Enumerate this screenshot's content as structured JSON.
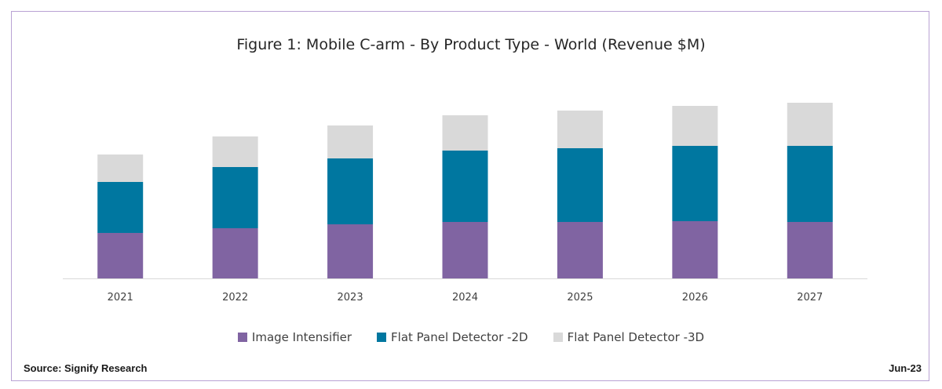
{
  "chart_data": {
    "type": "bar",
    "stacked": true,
    "title": "Figure 1: Mobile C-arm - By Product Type - World (Revenue $M)",
    "xlabel": "",
    "ylabel": "",
    "categories": [
      "2021",
      "2022",
      "2023",
      "2024",
      "2025",
      "2026",
      "2027"
    ],
    "series": [
      {
        "name": "Image Intensifier",
        "color": "#8064a2",
        "values": [
          58,
          64,
          69,
          72,
          72,
          73,
          72
        ]
      },
      {
        "name": "Flat Panel Detector -2D",
        "color": "#0077a0",
        "values": [
          65,
          78,
          84,
          91,
          94,
          96,
          97
        ]
      },
      {
        "name": "Flat Panel Detector -3D",
        "color": "#d9d9d9",
        "values": [
          35,
          39,
          42,
          45,
          48,
          51,
          55
        ]
      }
    ],
    "ylim": [
      0,
      245
    ],
    "grid": false,
    "legend_position": "bottom"
  },
  "footer": {
    "source": "Source: Signify Research",
    "date": "Jun-23"
  }
}
